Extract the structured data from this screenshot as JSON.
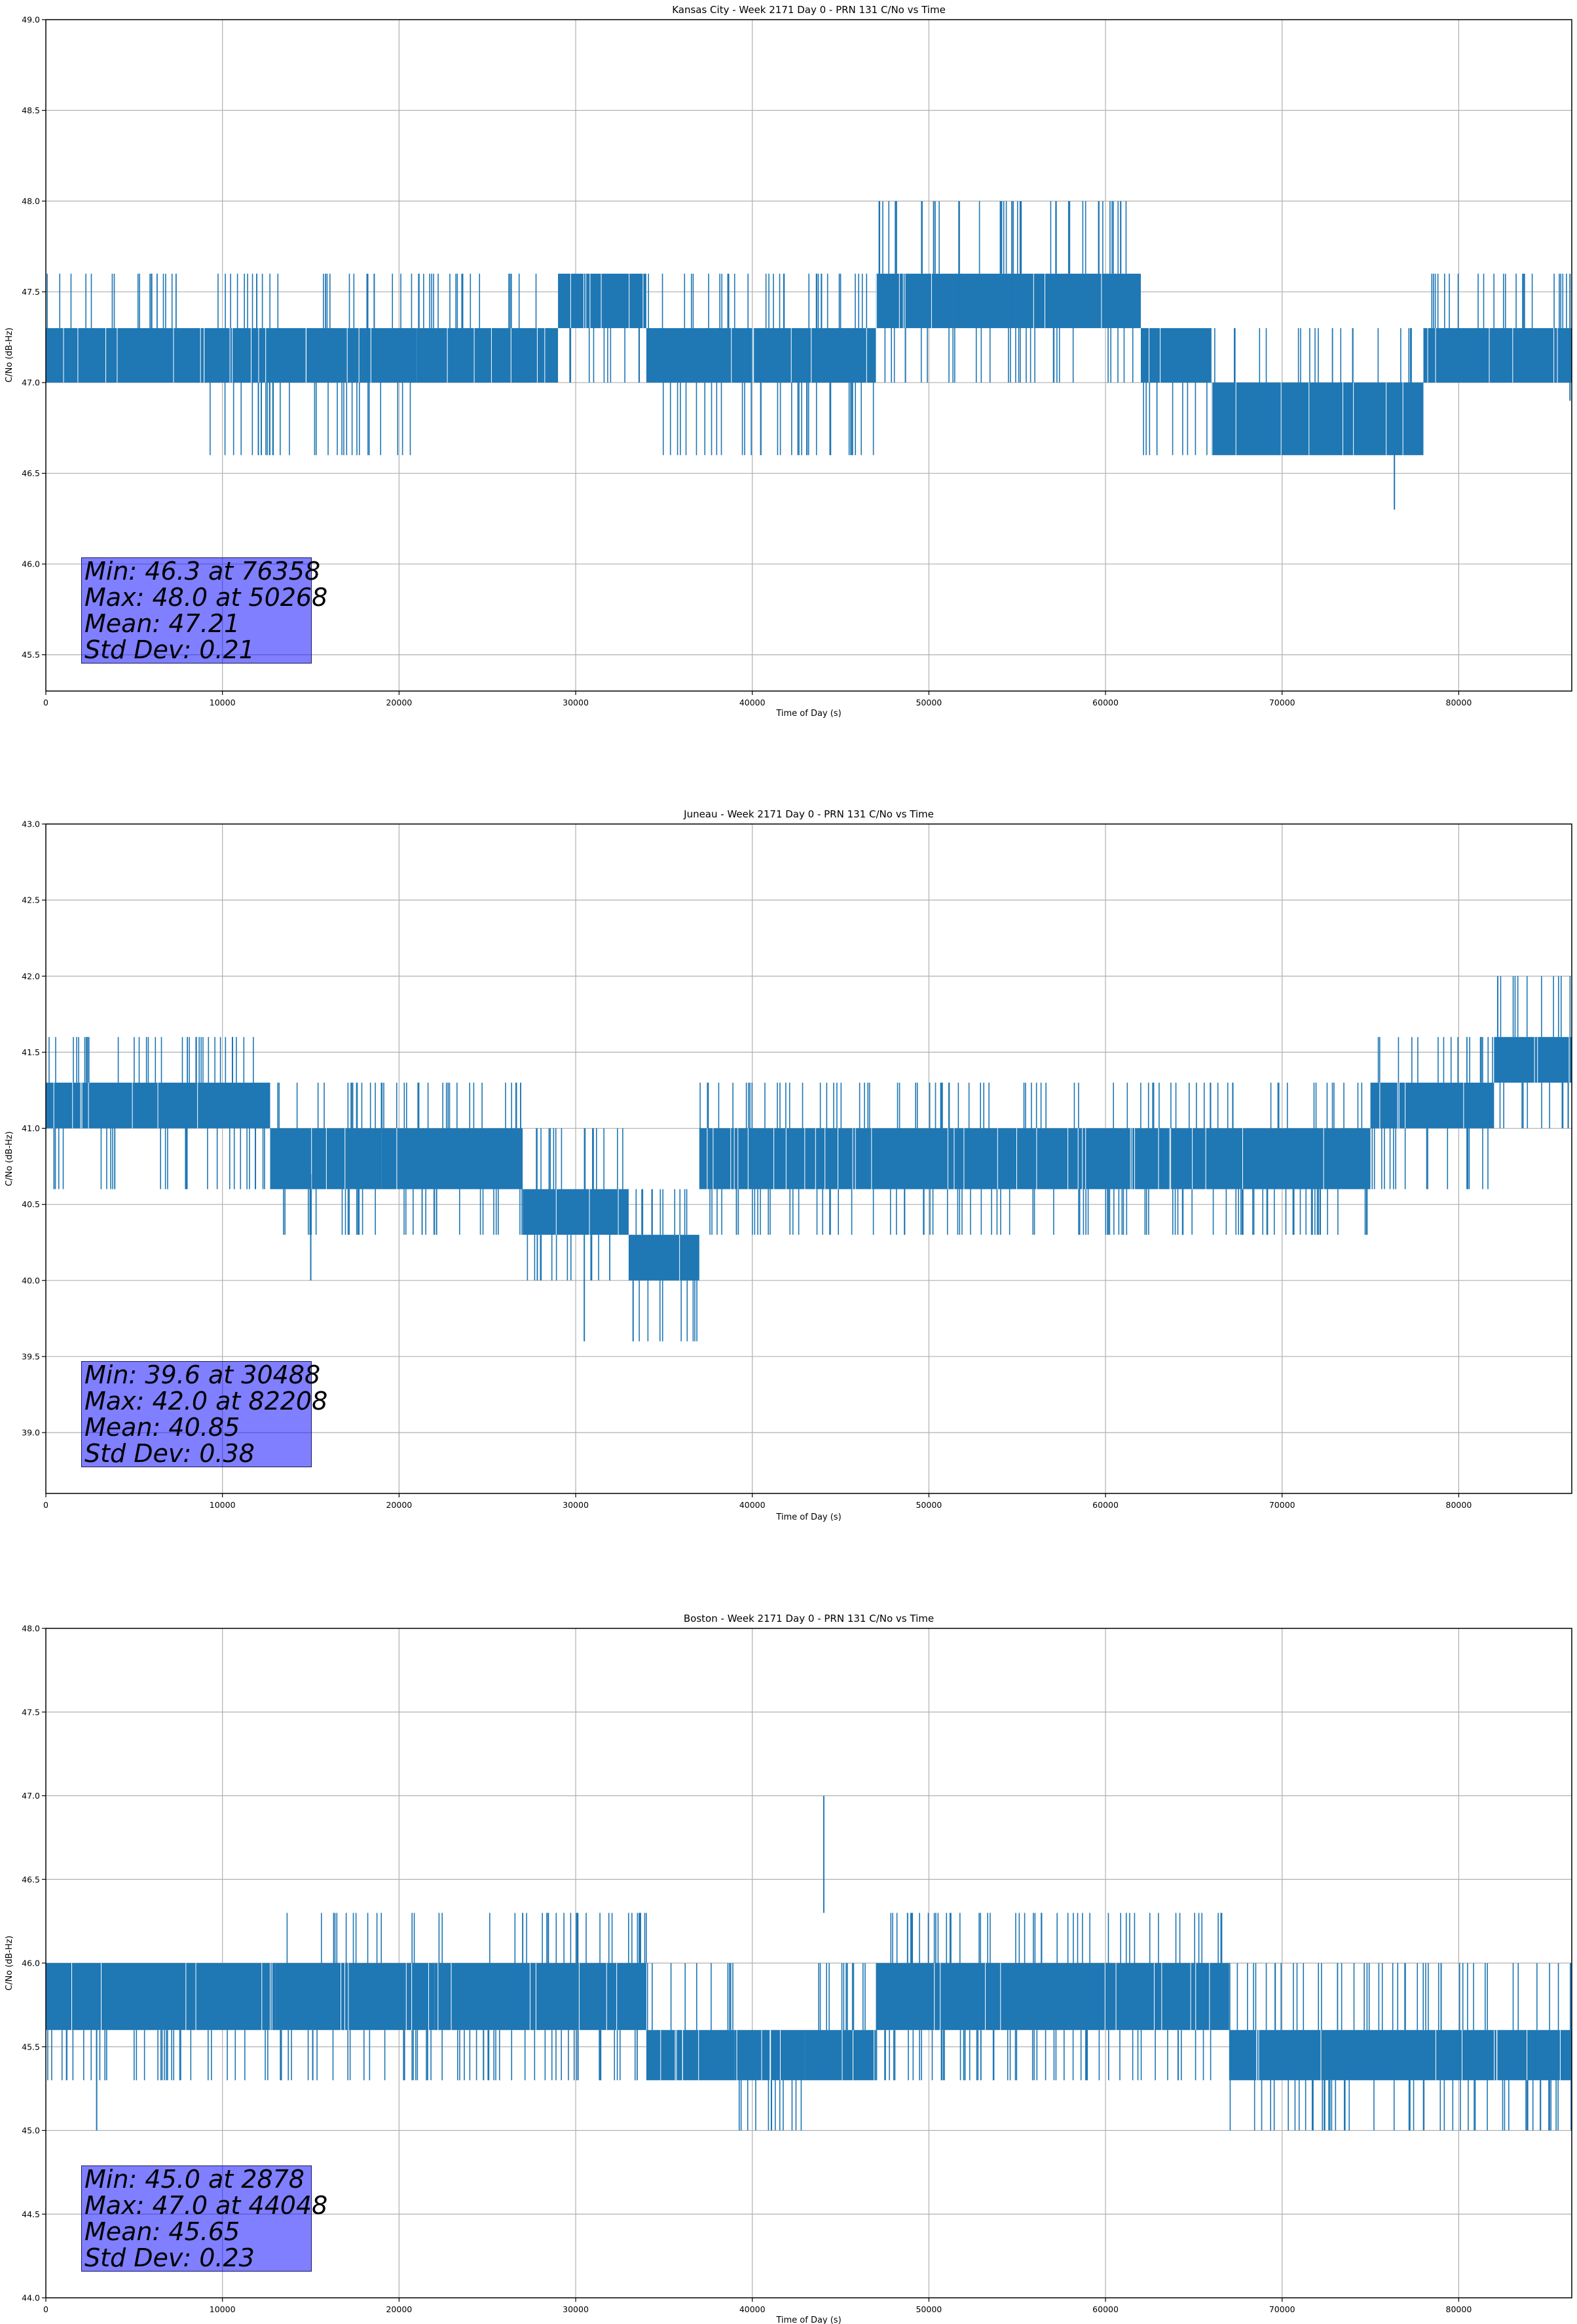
{
  "colors": {
    "line": "#1f77b4",
    "grid": "#b0b0b0",
    "stats_box": "#8080ff"
  },
  "chart_data": [
    {
      "type": "line",
      "title": "Kansas City - Week 2171 Day 0 - PRN 131 C/No vs Time",
      "xlabel": "Time of Day (s)",
      "ylabel": "C/No (dB-Hz)",
      "xlim": [
        0,
        86400
      ],
      "ylim": [
        45.3,
        49.0
      ],
      "xticks": [
        0,
        10000,
        20000,
        30000,
        40000,
        50000,
        60000,
        70000,
        80000
      ],
      "yticks": [
        45.5,
        46.0,
        46.5,
        47.0,
        47.5,
        48.0,
        48.5,
        49.0
      ],
      "grid": true,
      "series_description_segments": [
        {
          "x_start": 0,
          "x_end": 9000,
          "low": 47.0,
          "high": 47.3,
          "up": 47.6,
          "down": null
        },
        {
          "x_start": 9000,
          "x_end": 21000,
          "low": 47.0,
          "high": 47.3,
          "up": 47.6,
          "down": 46.6
        },
        {
          "x_start": 21000,
          "x_end": 29000,
          "low": 47.0,
          "high": 47.3,
          "up": 47.6,
          "down": null
        },
        {
          "x_start": 29000,
          "x_end": 34000,
          "low": 47.3,
          "high": 47.6,
          "down": 47.0,
          "up": null
        },
        {
          "x_start": 34000,
          "x_end": 47000,
          "low": 47.0,
          "high": 47.3,
          "down": 46.6,
          "up": 47.6
        },
        {
          "x_start": 47000,
          "x_end": 62000,
          "low": 47.3,
          "high": 47.6,
          "down": 47.0,
          "up": 48.0
        },
        {
          "x_start": 62000,
          "x_end": 66000,
          "low": 47.0,
          "high": 47.3,
          "down": 46.6,
          "up": null
        },
        {
          "x_start": 66000,
          "x_end": 78000,
          "low": 46.6,
          "high": 47.0,
          "down": null,
          "up": 47.3
        },
        {
          "x_start": 78000,
          "x_end": 86400,
          "low": 47.0,
          "high": 47.3,
          "down": null,
          "up": 47.6
        }
      ],
      "spikes": [
        {
          "x": 50268,
          "y": 48.0
        },
        {
          "x": 51700,
          "y": 48.0
        },
        {
          "x": 54700,
          "y": 48.0
        },
        {
          "x": 76358,
          "y": 46.3
        },
        {
          "x": 12200,
          "y": 46.6
        },
        {
          "x": 86300,
          "y": 47.6
        }
      ],
      "annotation": [
        "Min: 46.3 at 76358",
        "Max: 48.0 at 50268",
        "Mean: 47.21",
        "Std Dev: 0.21"
      ]
    },
    {
      "type": "line",
      "title": "Juneau - Week 2171 Day 0 - PRN 131 C/No vs Time",
      "xlabel": "Time of Day (s)",
      "ylabel": "C/No (dB-Hz)",
      "xlim": [
        0,
        86400
      ],
      "ylim": [
        38.6,
        43.0
      ],
      "xticks": [
        0,
        10000,
        20000,
        30000,
        40000,
        50000,
        60000,
        70000,
        80000
      ],
      "yticks": [
        39.0,
        39.5,
        40.0,
        40.5,
        41.0,
        41.5,
        42.0,
        42.5,
        43.0
      ],
      "grid": true,
      "series_description_segments": [
        {
          "x_start": 0,
          "x_end": 12700,
          "low": 41.0,
          "high": 41.3,
          "up": 41.6,
          "down": 40.6
        },
        {
          "x_start": 12700,
          "x_end": 19000,
          "low": 40.6,
          "high": 41.0,
          "up": 41.3,
          "down": 40.3
        },
        {
          "x_start": 19000,
          "x_end": 27000,
          "low": 40.6,
          "high": 41.0,
          "up": 41.3,
          "down": 40.3
        },
        {
          "x_start": 27000,
          "x_end": 33000,
          "low": 40.3,
          "high": 40.6,
          "up": 41.0,
          "down": 40.0
        },
        {
          "x_start": 33000,
          "x_end": 37000,
          "low": 40.0,
          "high": 40.3,
          "up": 40.6,
          "down": 39.6
        },
        {
          "x_start": 37000,
          "x_end": 63000,
          "low": 40.6,
          "high": 41.0,
          "up": 41.3,
          "down": 40.3
        },
        {
          "x_start": 63000,
          "x_end": 75000,
          "low": 40.6,
          "high": 41.0,
          "up": 41.3,
          "down": 40.3
        },
        {
          "x_start": 75000,
          "x_end": 82000,
          "low": 41.0,
          "high": 41.3,
          "up": 41.6,
          "down": 40.6
        },
        {
          "x_start": 82000,
          "x_end": 86400,
          "low": 41.3,
          "high": 41.6,
          "up": 42.0,
          "down": 41.0
        }
      ],
      "spikes": [
        {
          "x": 30488,
          "y": 39.6
        },
        {
          "x": 82208,
          "y": 42.0
        },
        {
          "x": 15000,
          "y": 40.0
        }
      ],
      "annotation": [
        "Min: 39.6 at 30488",
        "Max: 42.0 at 82208",
        "Mean: 40.85",
        "Std Dev: 0.38"
      ]
    },
    {
      "type": "line",
      "title": "Boston - Week 2171 Day 0 - PRN 131 C/No vs Time",
      "xlabel": "Time of Day (s)",
      "ylabel": "C/No (dB-Hz)",
      "xlim": [
        0,
        86400
      ],
      "ylim": [
        44.0,
        48.0
      ],
      "xticks": [
        0,
        10000,
        20000,
        30000,
        40000,
        50000,
        60000,
        70000,
        80000
      ],
      "yticks": [
        44.0,
        44.5,
        45.0,
        45.5,
        46.0,
        46.5,
        47.0,
        47.5,
        48.0
      ],
      "grid": true,
      "series_description_segments": [
        {
          "x_start": 0,
          "x_end": 13000,
          "low": 45.6,
          "high": 46.0,
          "up": null,
          "down": 45.3
        },
        {
          "x_start": 13000,
          "x_end": 22000,
          "low": 45.6,
          "high": 46.0,
          "up": 46.3,
          "down": 45.3
        },
        {
          "x_start": 22000,
          "x_end": 34000,
          "low": 45.6,
          "high": 46.0,
          "up": 46.3,
          "down": 45.3
        },
        {
          "x_start": 34000,
          "x_end": 39000,
          "low": 45.3,
          "high": 45.6,
          "up": 46.0,
          "down": null
        },
        {
          "x_start": 39000,
          "x_end": 43000,
          "low": 45.3,
          "high": 45.6,
          "up": null,
          "down": 45.0
        },
        {
          "x_start": 43000,
          "x_end": 47000,
          "low": 45.3,
          "high": 45.6,
          "up": 46.0,
          "down": null
        },
        {
          "x_start": 47000,
          "x_end": 67000,
          "low": 45.6,
          "high": 46.0,
          "up": 46.3,
          "down": 45.3
        },
        {
          "x_start": 67000,
          "x_end": 86400,
          "low": 45.3,
          "high": 45.6,
          "up": 46.0,
          "down": 45.0
        }
      ],
      "spikes": [
        {
          "x": 44048,
          "y": 47.0
        },
        {
          "x": 2878,
          "y": 45.0
        },
        {
          "x": 27000,
          "y": 46.3
        }
      ],
      "annotation": [
        "Min: 45.0 at 2878",
        "Max: 47.0 at 44048",
        "Mean: 45.65",
        "Std Dev: 0.23"
      ]
    }
  ]
}
